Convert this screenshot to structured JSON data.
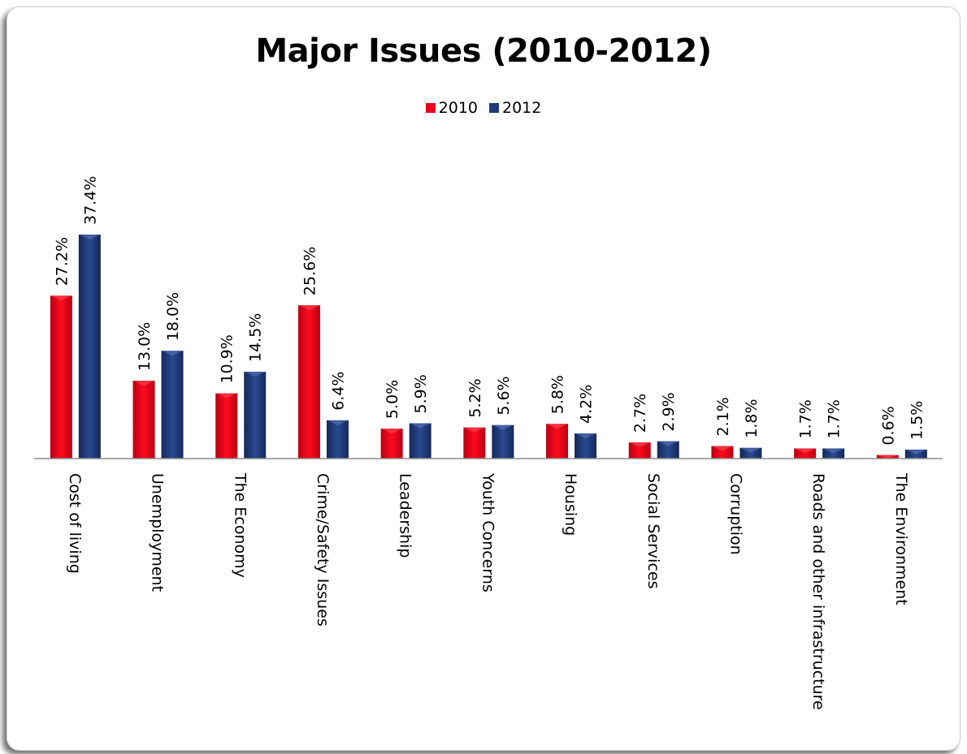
{
  "chart_data": {
    "type": "bar",
    "title": "Major Issues (2010-2012)",
    "categories": [
      "Cost of living",
      "Unemployment",
      "The Economy",
      "Crime/Safety Issues",
      "Leadership",
      "Youth Concerns",
      "Housing",
      "Social Services",
      "Corruption",
      "Roads and other infrastructure",
      "The Environment"
    ],
    "series": [
      {
        "name": "2010",
        "color": "#e8001c",
        "values": [
          27.2,
          13.0,
          10.9,
          25.6,
          5.0,
          5.2,
          5.8,
          2.7,
          2.1,
          1.7,
          0.6
        ],
        "labels": [
          "27.2%",
          "13.0%",
          "10.9%",
          "25.6%",
          "5.0%",
          "5.2%",
          "5.8%",
          "2.7%",
          "2.1%",
          "1.7%",
          "0.6%"
        ]
      },
      {
        "name": "2012",
        "color": "#1f3a78",
        "values": [
          37.4,
          18.0,
          14.5,
          6.4,
          5.9,
          5.6,
          4.2,
          2.9,
          1.8,
          1.7,
          1.5
        ],
        "labels": [
          "37.4%",
          "18.0%",
          "14.5%",
          "6.4%",
          "5.9%",
          "5.6%",
          "4.2%",
          "2.9%",
          "1.8%",
          "1.7%",
          "1.5%"
        ]
      }
    ],
    "legend": "top-center",
    "grid": false,
    "value_axis_shown": false
  }
}
